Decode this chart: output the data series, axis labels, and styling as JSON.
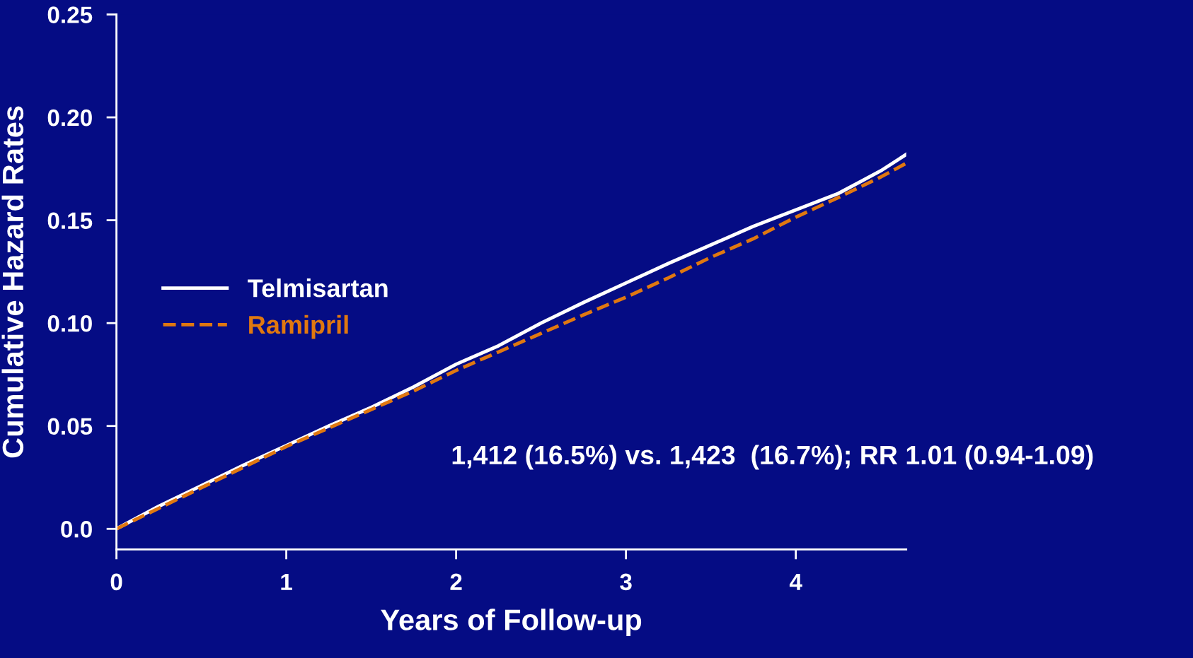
{
  "chart_data": {
    "type": "line",
    "xlabel": "Years of Follow-up",
    "ylabel": "Cumulative Hazard Rates",
    "xlim": [
      0,
      4.65
    ],
    "ylim": [
      -0.01,
      0.25
    ],
    "xticks": [
      0,
      1,
      2,
      3,
      4
    ],
    "yticks": [
      {
        "value": 0,
        "label": "0.0"
      },
      0.05,
      {
        "value": 0.1,
        "label": "0.10"
      },
      0.15,
      {
        "value": 0.2,
        "label": "0.20"
      },
      0.25
    ],
    "grid": false,
    "legend": "left",
    "marker": "none",
    "series": [
      {
        "name": "Telmisartan",
        "color": "#ffffff",
        "line_style": "solid",
        "x": [
          0,
          0.25,
          0.5,
          0.75,
          1,
          1.25,
          1.5,
          1.75,
          2,
          2.25,
          2.5,
          2.75,
          3,
          3.25,
          3.5,
          3.75,
          4,
          4.25,
          4.5,
          4.65
        ],
        "values": [
          0,
          0.011,
          0.021,
          0.031,
          0.0405,
          0.05,
          0.059,
          0.069,
          0.08,
          0.089,
          0.1,
          0.11,
          0.1195,
          0.129,
          0.138,
          0.147,
          0.155,
          0.163,
          0.174,
          0.182
        ]
      },
      {
        "name": "Ramipril",
        "color": "#e07810",
        "line_style": "dashed",
        "x": [
          0,
          0.25,
          0.5,
          0.75,
          1,
          1.25,
          1.5,
          1.75,
          2,
          2.25,
          2.5,
          2.75,
          3,
          3.25,
          3.5,
          3.75,
          4,
          4.25,
          4.5,
          4.65
        ],
        "values": [
          0,
          0.01,
          0.02,
          0.03,
          0.04,
          0.049,
          0.058,
          0.067,
          0.077,
          0.086,
          0.095,
          0.104,
          0.1126,
          0.122,
          0.132,
          0.141,
          0.1515,
          0.161,
          0.171,
          0.1777
        ]
      }
    ],
    "annotations": [
      "1,412 (16.5%) vs. 1,423  (16.7%); RR 1.01 (0.94-1.09)"
    ]
  }
}
